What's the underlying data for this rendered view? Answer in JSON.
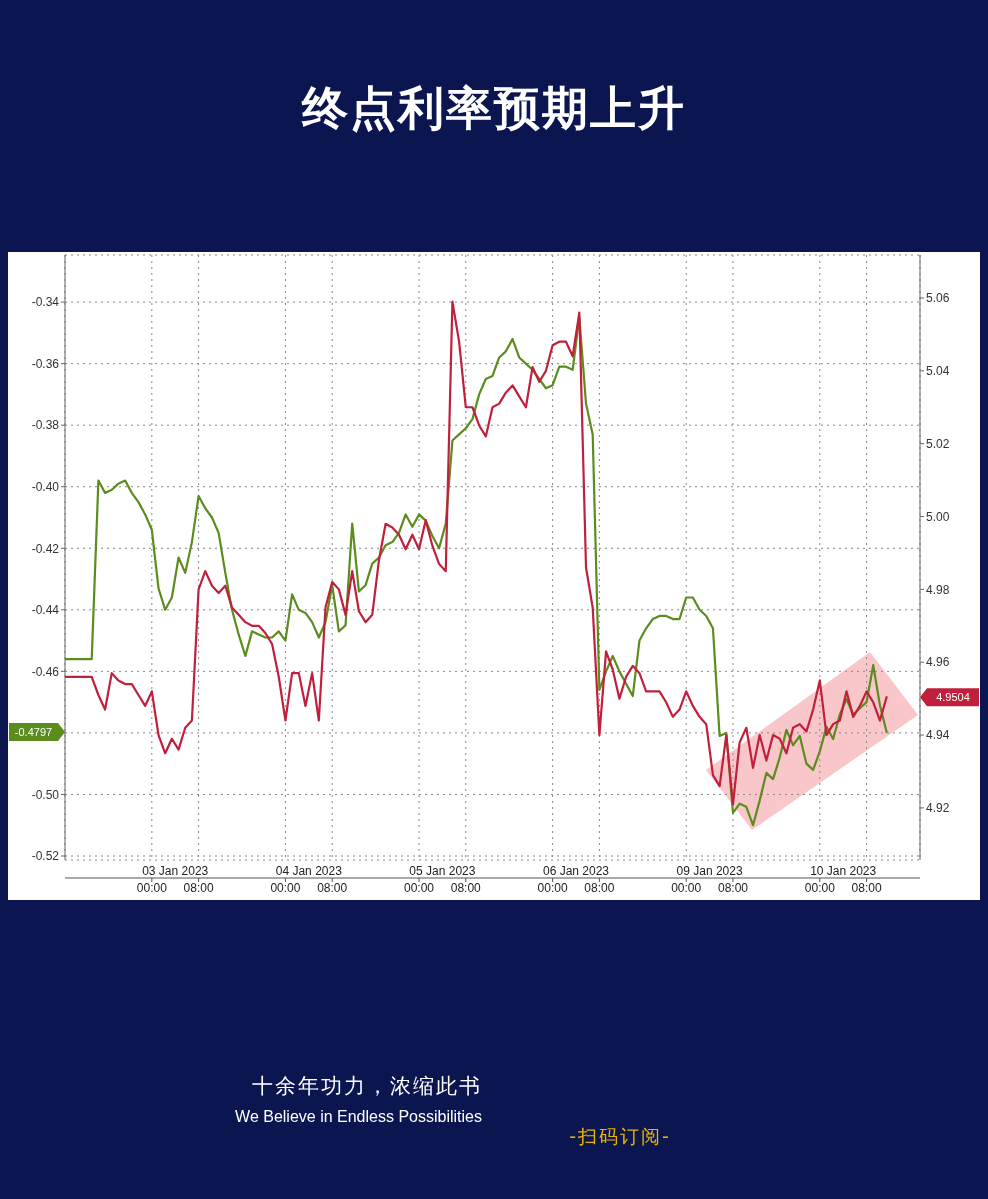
{
  "chart_data": {
    "type": "line",
    "title": "终点利率预期上升",
    "categories": [
      null,
      null,
      null,
      null,
      null,
      null,
      null,
      null,
      null,
      null,
      null,
      null,
      null,
      "00:00",
      null,
      null,
      null,
      null,
      null,
      null,
      "08:00",
      null,
      null,
      null,
      null,
      null,
      null,
      null,
      null,
      null,
      null,
      null,
      null,
      "00:00",
      null,
      null,
      null,
      null,
      null,
      null,
      "08:00",
      null,
      null,
      null,
      null,
      null,
      null,
      null,
      null,
      null,
      null,
      null,
      null,
      "00:00",
      null,
      null,
      null,
      null,
      null,
      null,
      "08:00",
      null,
      null,
      null,
      null,
      null,
      null,
      null,
      null,
      null,
      null,
      null,
      null,
      "00:00",
      null,
      null,
      null,
      null,
      null,
      null,
      "08:00",
      null,
      null,
      null,
      null,
      null,
      null,
      null,
      null,
      null,
      null,
      null,
      null,
      "00:00",
      null,
      null,
      null,
      null,
      null,
      null,
      "08:00",
      null,
      null,
      null,
      null,
      null,
      null,
      null,
      null,
      null,
      null,
      null,
      null,
      "00:00",
      null,
      null,
      null,
      null,
      null,
      null,
      "08:00",
      null,
      null,
      null,
      null,
      null,
      null,
      null,
      null
    ],
    "series": [
      {
        "color": "#5b8c1e",
        "values": [
          -0.456,
          -0.456,
          -0.456,
          -0.456,
          -0.456,
          -0.398,
          -0.402,
          -0.401,
          -0.399,
          -0.398,
          -0.402,
          -0.405,
          -0.409,
          -0.414,
          -0.433,
          -0.44,
          -0.436,
          -0.423,
          -0.428,
          -0.418,
          -0.403,
          -0.407,
          -0.41,
          -0.415,
          -0.428,
          -0.44,
          -0.448,
          -0.455,
          -0.447,
          -0.448,
          -0.449,
          -0.449,
          -0.447,
          -0.45,
          -0.435,
          -0.44,
          -0.441,
          -0.444,
          -0.449,
          -0.444,
          -0.432,
          -0.447,
          -0.445,
          -0.412,
          -0.434,
          -0.432,
          -0.425,
          -0.423,
          -0.419,
          -0.418,
          -0.415,
          -0.409,
          -0.413,
          -0.409,
          -0.411,
          -0.416,
          -0.42,
          -0.412,
          -0.385,
          -0.383,
          -0.381,
          -0.378,
          -0.37,
          -0.365,
          -0.364,
          -0.358,
          -0.356,
          -0.352,
          -0.358,
          -0.36,
          -0.362,
          -0.365,
          -0.368,
          -0.367,
          -0.361,
          -0.361,
          -0.362,
          -0.345,
          -0.373,
          -0.383,
          -0.466,
          -0.46,
          -0.455,
          -0.46,
          -0.464,
          -0.468,
          -0.45,
          -0.446,
          -0.443,
          -0.442,
          -0.442,
          -0.443,
          -0.443,
          -0.436,
          -0.436,
          -0.44,
          -0.442,
          -0.446,
          -0.481,
          -0.48,
          -0.506,
          -0.503,
          -0.504,
          -0.51,
          -0.502,
          -0.493,
          -0.495,
          -0.488,
          -0.479,
          -0.484,
          -0.481,
          -0.49,
          -0.492,
          -0.486,
          -0.478,
          -0.482,
          -0.474,
          -0.469,
          -0.474,
          -0.472,
          -0.47,
          -0.458,
          -0.471,
          -0.4797,
          null,
          null,
          null,
          null,
          null
        ]
      },
      {
        "color": "#c0203c",
        "axis": "y2",
        "values": [
          4.956,
          4.956,
          4.956,
          4.956,
          4.956,
          4.951,
          4.947,
          4.957,
          4.955,
          4.954,
          4.954,
          4.951,
          4.948,
          4.952,
          4.94,
          4.935,
          4.939,
          4.936,
          4.942,
          4.944,
          4.98,
          4.985,
          4.981,
          4.979,
          4.981,
          4.975,
          4.973,
          4.971,
          4.97,
          4.97,
          4.968,
          4.965,
          4.956,
          4.944,
          4.957,
          4.957,
          4.948,
          4.957,
          4.944,
          4.975,
          4.982,
          4.98,
          4.973,
          4.985,
          4.974,
          4.971,
          4.973,
          4.988,
          4.998,
          4.997,
          4.995,
          4.991,
          4.995,
          4.991,
          4.999,
          4.992,
          4.987,
          4.985,
          5.059,
          5.048,
          5.03,
          5.03,
          5.025,
          5.022,
          5.03,
          5.031,
          5.034,
          5.036,
          5.033,
          5.03,
          5.041,
          5.037,
          5.04,
          5.047,
          5.048,
          5.048,
          5.044,
          5.056,
          4.986,
          4.975,
          4.94,
          4.963,
          4.958,
          4.95,
          4.956,
          4.959,
          4.957,
          4.952,
          4.952,
          4.952,
          4.949,
          4.945,
          4.947,
          4.952,
          4.948,
          4.945,
          4.943,
          4.929,
          4.926,
          4.94,
          4.921,
          4.938,
          4.942,
          4.931,
          4.94,
          4.933,
          4.94,
          4.939,
          4.935,
          4.942,
          4.943,
          4.941,
          4.947,
          4.955,
          4.94,
          4.943,
          4.944,
          4.952,
          4.945,
          4.948,
          4.952,
          4.949,
          4.944,
          4.9504,
          null,
          null,
          null,
          null,
          null
        ]
      }
    ],
    "ylim": [
      -0.5213,
      -0.3247
    ],
    "yticks": [
      -0.52,
      {
        "value": -0.5,
        "label": "-0.50"
      },
      {
        "value": -0.48,
        "label": null
      },
      -0.46,
      -0.44,
      -0.42,
      {
        "value": -0.4,
        "label": "-0.40"
      },
      -0.38,
      -0.36,
      -0.34
    ],
    "y2lim": [
      4.9057,
      5.0718
    ],
    "y2ticks": [
      4.92,
      4.94,
      4.96,
      4.98,
      {
        "value": 5,
        "label": "5.00"
      },
      5.02,
      5.04,
      5.06
    ],
    "grid": true,
    "annotations": [
      "03 Jan 2023",
      "04 Jan 2023",
      "05 Jan 2023",
      "06 Jan 2023",
      "09 Jan 2023",
      "10 Jan 2023",
      "-0.4797",
      "4.9504",
      "十余年功力，浓缩此书",
      "We Believe in Endless Possibilities",
      "-扫码订阅-"
    ]
  }
}
